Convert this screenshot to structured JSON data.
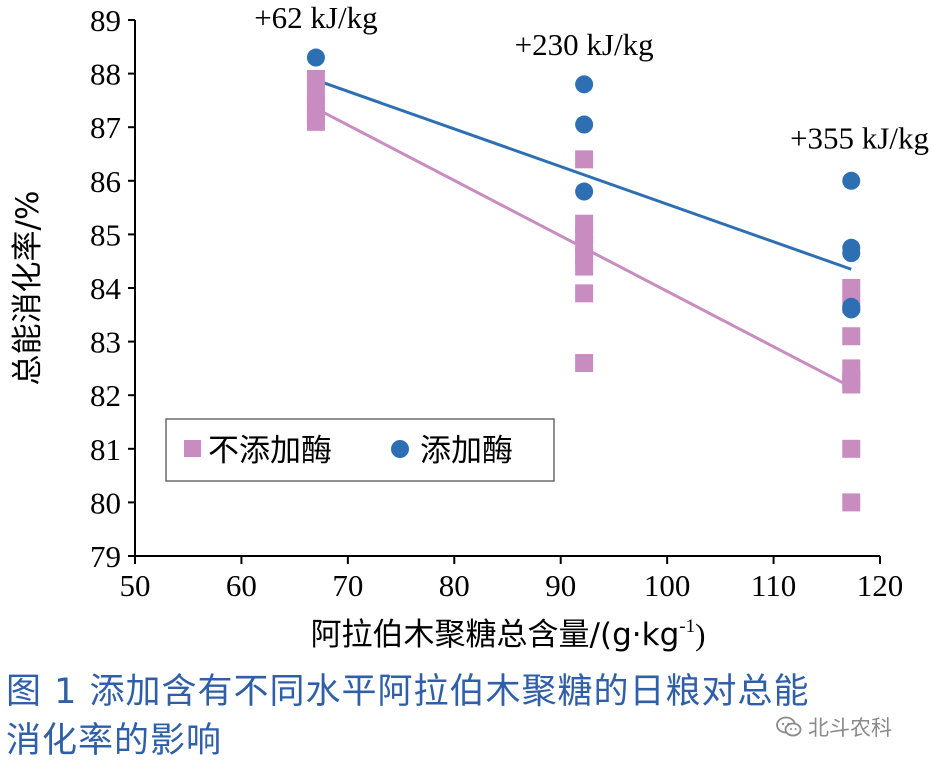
{
  "chart_data": {
    "type": "scatter",
    "xlabel": "阿拉伯木聚糖总含量/(g·kg",
    "xlabel_sup": "-1",
    "xlabel_end": ")",
    "ylabel": "总能消化率/%",
    "xlim": [
      50,
      120
    ],
    "ylim": [
      79,
      89
    ],
    "xticks": [
      "50",
      "60",
      "70",
      "80",
      "90",
      "100",
      "110",
      "120"
    ],
    "yticks": [
      "79",
      "80",
      "81",
      "82",
      "83",
      "84",
      "85",
      "86",
      "87",
      "88",
      "89"
    ],
    "grid": false,
    "legend_position": "bottom-left",
    "series": [
      {
        "name": "不添加酶",
        "marker": "square",
        "color": "#c98cc0",
        "x": [
          67,
          67,
          67,
          67,
          67,
          92.2,
          92.2,
          92.2,
          92.2,
          92.2,
          92.2,
          92.2,
          92.2,
          117.3,
          117.3,
          117.3,
          117.3,
          117.3,
          117.3,
          117.3,
          117.3
        ],
        "y": [
          87.9,
          87.6,
          87.4,
          87.2,
          87.1,
          86.4,
          85.2,
          85.0,
          84.8,
          84.6,
          84.4,
          83.9,
          82.6,
          84.0,
          83.7,
          83.1,
          82.5,
          82.3,
          82.2,
          81.0,
          80.0
        ],
        "fit": {
          "x": [
            67,
            117.3
          ],
          "y": [
            87.35,
            82.15
          ]
        }
      },
      {
        "name": "添加酶",
        "marker": "circle",
        "color": "#2e6fb4",
        "x": [
          67,
          92.2,
          92.2,
          92.2,
          117.3,
          117.3,
          117.3,
          117.3,
          117.3
        ],
        "y": [
          88.3,
          87.8,
          87.05,
          85.8,
          86.0,
          84.75,
          84.65,
          83.65,
          83.6
        ],
        "fit": {
          "x": [
            67,
            117.3
          ],
          "y": [
            87.88,
            84.35
          ]
        }
      }
    ],
    "annotations": [
      {
        "text": "+62 kJ/kg",
        "x": 67,
        "y": 88.85
      },
      {
        "text": "+230 kJ/kg",
        "x": 92.2,
        "y": 88.35
      },
      {
        "text": "+355 kJ/kg",
        "x": 117.3,
        "y": 86.6
      }
    ]
  },
  "caption": {
    "line1": "图 1  添加含有不同水平阿拉伯木聚糖的日粮对总能",
    "line2": "消化率的影响"
  },
  "watermark": {
    "text": "北斗农科",
    "icon": "wechat-icon"
  }
}
